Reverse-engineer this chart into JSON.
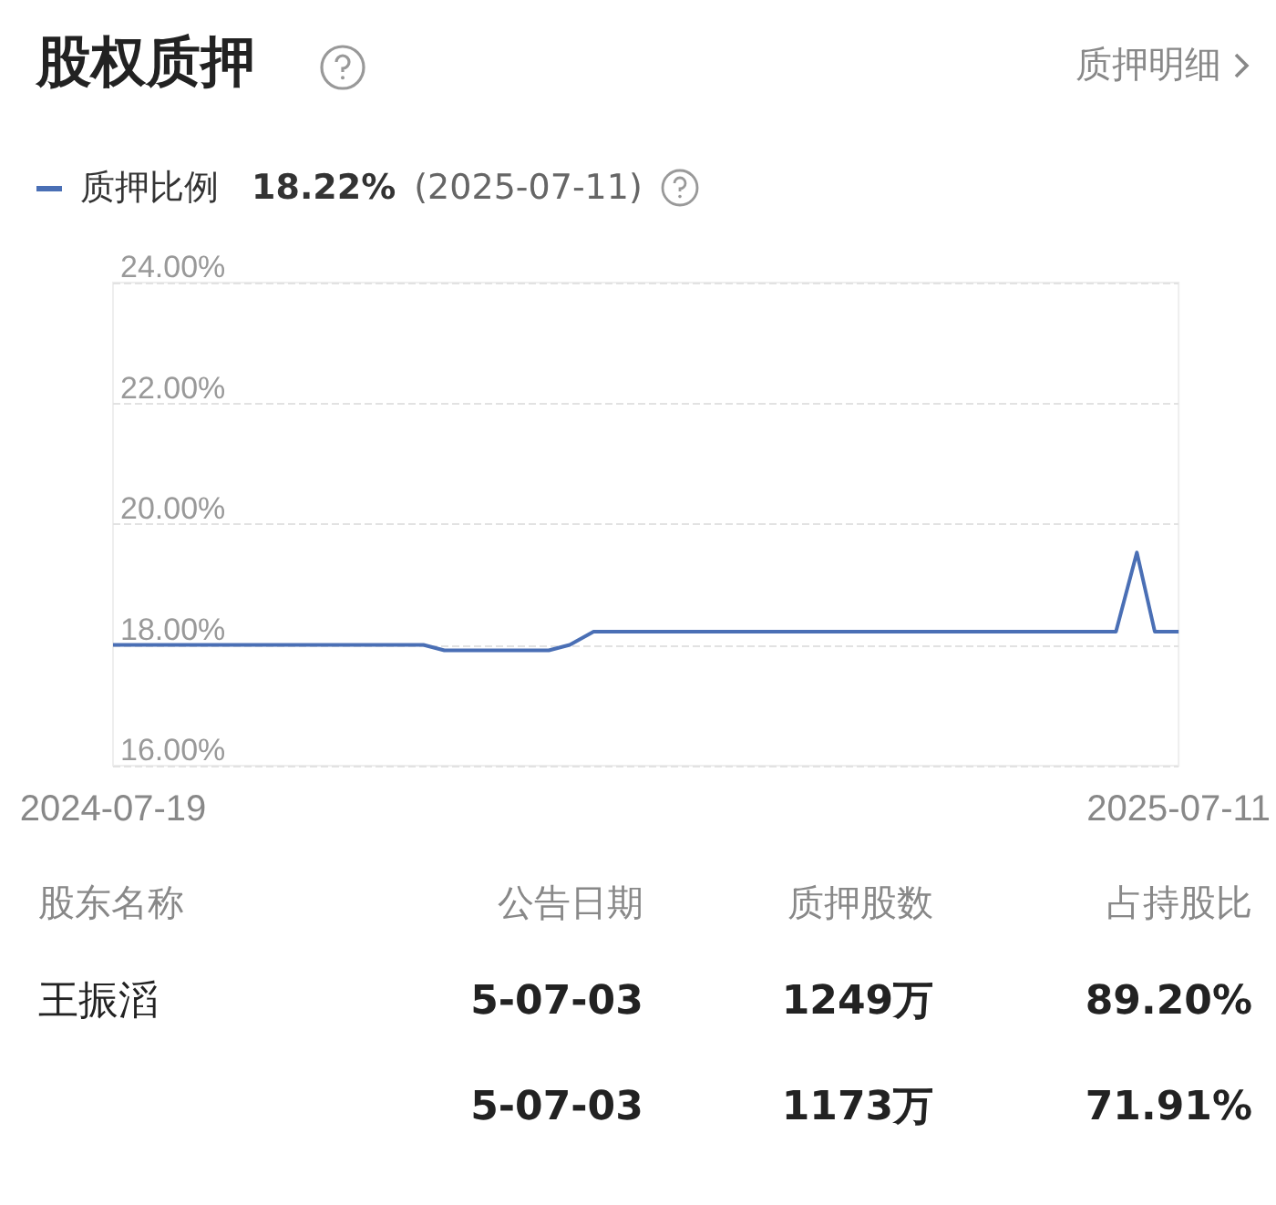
{
  "chart_data": [
    {
      "type": "line",
      "title": "股权质押",
      "annotations": [
        "质押明细",
        "18.22%",
        "(2025-07-11)"
      ],
      "legend": "top left",
      "grid": "y",
      "marker": "none",
      "x": [
        "2024-07-19",
        "2024-10-31",
        "2024-11-07",
        "2024-12-12",
        "2024-12-19",
        "2024-12-27",
        "2025-06-20",
        "2025-06-27",
        "2025-07-03",
        "2025-07-11"
      ],
      "series": [
        {
          "name": "质押比例",
          "color": "#4a6fb5",
          "values": [
            18.0,
            18.0,
            17.91,
            17.91,
            18.0,
            18.22,
            18.22,
            19.53,
            18.22,
            18.22
          ]
        }
      ],
      "xlim": [
        "2024-07-19",
        "2025-07-11"
      ],
      "xticks": [
        "2024-07-19",
        "2025-07-11"
      ],
      "ylim": [
        16,
        24
      ],
      "yticks": [
        {
          "value": 16,
          "label": "16.00%"
        },
        {
          "value": 18,
          "label": "18.00%"
        },
        {
          "value": 20,
          "label": "20.00%"
        },
        {
          "value": 22,
          "label": "22.00%"
        },
        {
          "value": 24,
          "label": "24.00%"
        }
      ]
    },
    {
      "type": "other",
      "categories": [
        "股东名称",
        "公告日期",
        "质押股数",
        "占持股比"
      ],
      "cell_labels": [
        [
          "王振滔",
          "5-07-03",
          "1249万",
          "89.20%"
        ],
        [
          null,
          "5-07-03",
          "1173万",
          "71.91%"
        ]
      ]
    }
  ]
}
